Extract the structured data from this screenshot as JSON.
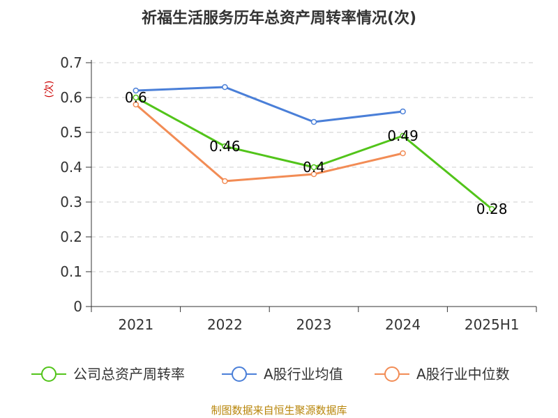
{
  "chart_data": {
    "type": "line",
    "title": "祈福生活服务历年总资产周转率情况(次)",
    "ylabel": "(次)",
    "xlabel": "",
    "categories": [
      "2021",
      "2022",
      "2023",
      "2024",
      "2025H1"
    ],
    "ylim": [
      0,
      0.7
    ],
    "yticks": [
      0,
      0.1,
      0.2,
      0.3,
      0.4,
      0.5,
      0.6,
      0.7
    ],
    "ytick_labels": [
      "0",
      "0.1",
      "0.2",
      "0.3",
      "0.4",
      "0.5",
      "0.6",
      "0.7"
    ],
    "grid": true,
    "legend_position": "bottom",
    "series": [
      {
        "name": "公司总资产周转率",
        "color": "#52c41a",
        "values": [
          0.6,
          0.46,
          0.4,
          0.49,
          0.28
        ],
        "labels": [
          "0.6",
          "0.46",
          "0.4",
          "0.49",
          "0.28"
        ]
      },
      {
        "name": "A股行业均值",
        "color": "#4a7fd8",
        "values": [
          0.62,
          0.63,
          0.53,
          0.56,
          null
        ]
      },
      {
        "name": "A股行业中位数",
        "color": "#f28c55",
        "values": [
          0.58,
          0.36,
          0.38,
          0.44,
          null
        ]
      }
    ]
  },
  "source": "制图数据来自恒生聚源数据库"
}
